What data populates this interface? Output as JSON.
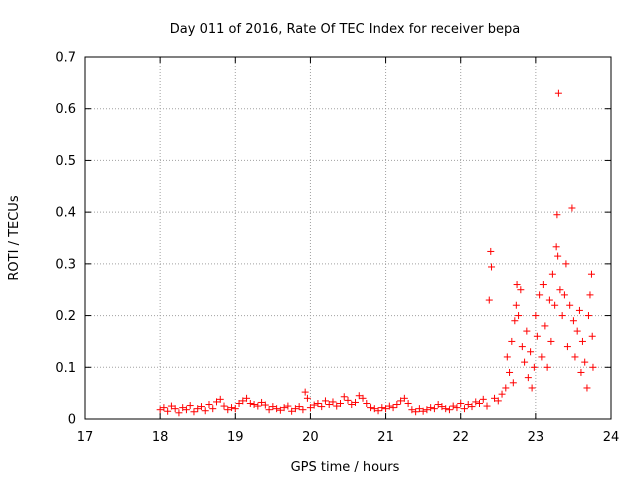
{
  "chart_data": {
    "type": "scatter",
    "title": "Day 011 of 2016, Rate Of TEC Index for receiver bepa",
    "xlabel": "GPS time / hours",
    "ylabel": "ROTI / TECUs",
    "xlim": [
      17,
      24
    ],
    "ylim": [
      0,
      0.7
    ],
    "xticks": [
      "17",
      "18",
      "19",
      "20",
      "21",
      "22",
      "23",
      "24"
    ],
    "yticks": [
      "0",
      "0.1",
      "0.2",
      "0.3",
      "0.4",
      "0.5",
      "0.6",
      "0.7"
    ],
    "grid": true,
    "marker": "+",
    "color": "#ff0000",
    "series": [
      {
        "points": [
          [
            18.0,
            0.018
          ],
          [
            18.05,
            0.022
          ],
          [
            18.1,
            0.015
          ],
          [
            18.15,
            0.025
          ],
          [
            18.2,
            0.02
          ],
          [
            18.25,
            0.012
          ],
          [
            18.3,
            0.022
          ],
          [
            18.35,
            0.018
          ],
          [
            18.4,
            0.026
          ],
          [
            18.45,
            0.014
          ],
          [
            18.5,
            0.02
          ],
          [
            18.55,
            0.024
          ],
          [
            18.6,
            0.016
          ],
          [
            18.65,
            0.028
          ],
          [
            18.7,
            0.02
          ],
          [
            18.75,
            0.033
          ],
          [
            18.8,
            0.038
          ],
          [
            18.85,
            0.025
          ],
          [
            18.9,
            0.018
          ],
          [
            18.95,
            0.022
          ],
          [
            19.0,
            0.02
          ],
          [
            19.05,
            0.03
          ],
          [
            19.1,
            0.035
          ],
          [
            19.15,
            0.04
          ],
          [
            19.2,
            0.03
          ],
          [
            19.25,
            0.028
          ],
          [
            19.3,
            0.025
          ],
          [
            19.35,
            0.032
          ],
          [
            19.4,
            0.027
          ],
          [
            19.45,
            0.018
          ],
          [
            19.5,
            0.024
          ],
          [
            19.55,
            0.02
          ],
          [
            19.6,
            0.017
          ],
          [
            19.65,
            0.022
          ],
          [
            19.7,
            0.025
          ],
          [
            19.75,
            0.015
          ],
          [
            19.8,
            0.02
          ],
          [
            19.85,
            0.024
          ],
          [
            19.9,
            0.018
          ],
          [
            19.93,
            0.052
          ],
          [
            19.96,
            0.04
          ],
          [
            20.0,
            0.022
          ],
          [
            20.05,
            0.027
          ],
          [
            20.1,
            0.03
          ],
          [
            20.15,
            0.024
          ],
          [
            20.2,
            0.035
          ],
          [
            20.25,
            0.028
          ],
          [
            20.3,
            0.033
          ],
          [
            20.35,
            0.025
          ],
          [
            20.4,
            0.03
          ],
          [
            20.45,
            0.043
          ],
          [
            20.5,
            0.036
          ],
          [
            20.55,
            0.028
          ],
          [
            20.6,
            0.032
          ],
          [
            20.65,
            0.045
          ],
          [
            20.7,
            0.04
          ],
          [
            20.75,
            0.03
          ],
          [
            20.8,
            0.022
          ],
          [
            20.85,
            0.02
          ],
          [
            20.9,
            0.016
          ],
          [
            20.95,
            0.022
          ],
          [
            21.0,
            0.02
          ],
          [
            21.05,
            0.025
          ],
          [
            21.1,
            0.022
          ],
          [
            21.15,
            0.028
          ],
          [
            21.2,
            0.035
          ],
          [
            21.25,
            0.04
          ],
          [
            21.3,
            0.03
          ],
          [
            21.35,
            0.018
          ],
          [
            21.4,
            0.014
          ],
          [
            21.45,
            0.02
          ],
          [
            21.5,
            0.015
          ],
          [
            21.55,
            0.018
          ],
          [
            21.6,
            0.022
          ],
          [
            21.65,
            0.02
          ],
          [
            21.7,
            0.028
          ],
          [
            21.75,
            0.024
          ],
          [
            21.8,
            0.02
          ],
          [
            21.85,
            0.018
          ],
          [
            21.9,
            0.025
          ],
          [
            21.95,
            0.022
          ],
          [
            22.0,
            0.03
          ],
          [
            22.05,
            0.02
          ],
          [
            22.1,
            0.028
          ],
          [
            22.15,
            0.024
          ],
          [
            22.2,
            0.033
          ],
          [
            22.25,
            0.03
          ],
          [
            22.3,
            0.038
          ],
          [
            22.35,
            0.025
          ],
          [
            22.38,
            0.23
          ],
          [
            22.4,
            0.324
          ],
          [
            22.41,
            0.294
          ],
          [
            22.45,
            0.04
          ],
          [
            22.5,
            0.035
          ],
          [
            22.55,
            0.048
          ],
          [
            22.6,
            0.06
          ],
          [
            22.62,
            0.12
          ],
          [
            22.65,
            0.09
          ],
          [
            22.68,
            0.15
          ],
          [
            22.7,
            0.07
          ],
          [
            22.72,
            0.19
          ],
          [
            22.74,
            0.22
          ],
          [
            22.75,
            0.26
          ],
          [
            22.77,
            0.2
          ],
          [
            22.8,
            0.25
          ],
          [
            22.82,
            0.14
          ],
          [
            22.85,
            0.11
          ],
          [
            22.88,
            0.17
          ],
          [
            22.9,
            0.08
          ],
          [
            22.93,
            0.13
          ],
          [
            22.95,
            0.06
          ],
          [
            22.98,
            0.1
          ],
          [
            23.0,
            0.2
          ],
          [
            23.02,
            0.16
          ],
          [
            23.05,
            0.24
          ],
          [
            23.08,
            0.12
          ],
          [
            23.1,
            0.26
          ],
          [
            23.12,
            0.18
          ],
          [
            23.15,
            0.1
          ],
          [
            23.18,
            0.23
          ],
          [
            23.2,
            0.15
          ],
          [
            23.22,
            0.28
          ],
          [
            23.25,
            0.22
          ],
          [
            23.27,
            0.333
          ],
          [
            23.28,
            0.395
          ],
          [
            23.29,
            0.315
          ],
          [
            23.3,
            0.63
          ],
          [
            23.32,
            0.25
          ],
          [
            23.35,
            0.2
          ],
          [
            23.38,
            0.24
          ],
          [
            23.4,
            0.3
          ],
          [
            23.42,
            0.14
          ],
          [
            23.45,
            0.22
          ],
          [
            23.48,
            0.408
          ],
          [
            23.5,
            0.19
          ],
          [
            23.52,
            0.12
          ],
          [
            23.55,
            0.17
          ],
          [
            23.58,
            0.21
          ],
          [
            23.6,
            0.09
          ],
          [
            23.62,
            0.15
          ],
          [
            23.65,
            0.11
          ],
          [
            23.68,
            0.06
          ],
          [
            23.7,
            0.2
          ],
          [
            23.72,
            0.24
          ],
          [
            23.74,
            0.28
          ],
          [
            23.75,
            0.16
          ],
          [
            23.76,
            0.1
          ]
        ]
      }
    ]
  }
}
